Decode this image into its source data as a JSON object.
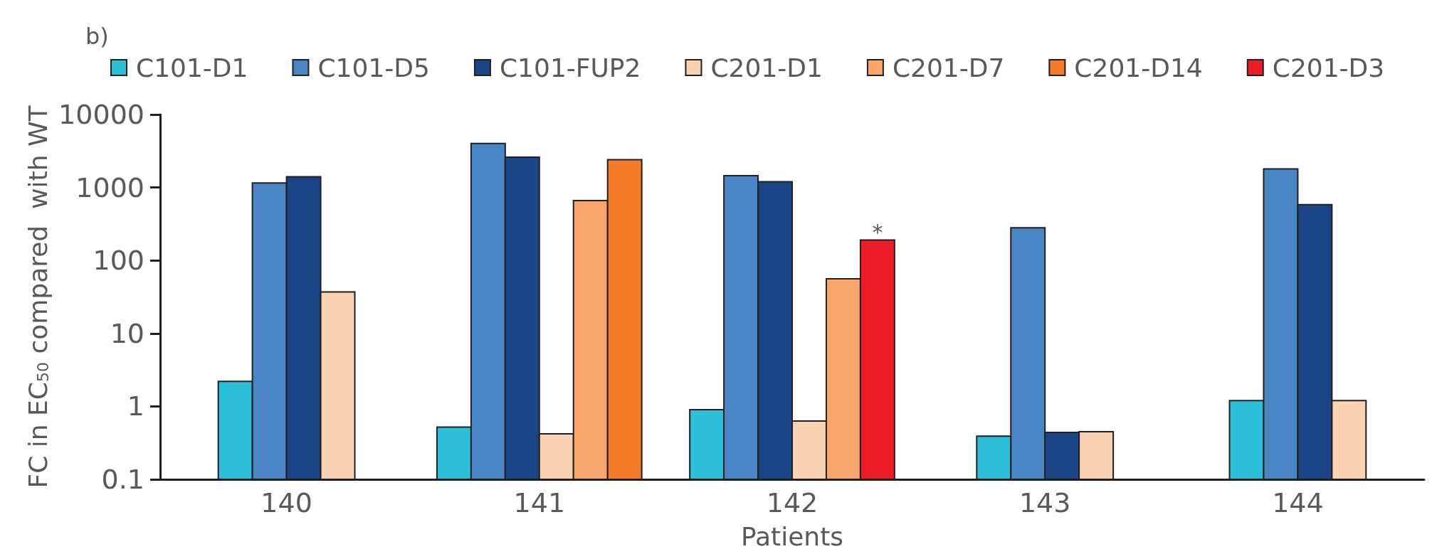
{
  "chart_data": {
    "type": "bar",
    "title": "b)",
    "xlabel": "Patients",
    "ylabel": "FC in EC$_{50}$ compared  with WT",
    "categories": [
      "140",
      "141",
      "142",
      "143",
      "144"
    ],
    "series": [
      {
        "name": "C101-D1",
        "color": "#2bbfda",
        "values": [
          2.2,
          0.52,
          0.9,
          0.39,
          1.2
        ]
      },
      {
        "name": "C101-D5",
        "color": "#4a86c5",
        "values": [
          1150,
          4000,
          1450,
          280,
          1800
        ]
      },
      {
        "name": "C101-FUP2",
        "color": "#1a4587",
        "values": [
          1400,
          2600,
          1200,
          0.44,
          580
        ]
      },
      {
        "name": "C201-D1",
        "color": "#fad3b3",
        "values": [
          37,
          0.42,
          0.63,
          0.45,
          1.2
        ]
      },
      {
        "name": "C201-D7",
        "color": "#f8a66c",
        "values": [
          null,
          660,
          56,
          null,
          null
        ]
      },
      {
        "name": "C201-D14",
        "color": "#f47b28",
        "values": [
          null,
          2400,
          null,
          null,
          null
        ]
      },
      {
        "name": "C201-D3",
        "color": "#ec1d25",
        "values": [
          null,
          null,
          190,
          null,
          null
        ]
      }
    ],
    "log": "y",
    "ylim": [
      0.1,
      10000
    ],
    "yticks": [
      0.1,
      1,
      10,
      100,
      1000,
      10000
    ],
    "grid": false,
    "legend": "top left",
    "annotations": [
      {
        "text": "*",
        "y": 190
      }
    ]
  }
}
